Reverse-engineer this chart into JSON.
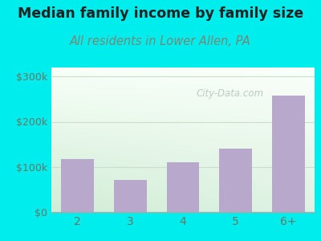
{
  "categories": [
    "2",
    "3",
    "4",
    "5",
    "6+"
  ],
  "values": [
    118000,
    72000,
    110000,
    140000,
    258000
  ],
  "bar_color": "#b8a8cc",
  "title": "Median family income by family size",
  "subtitle": "All residents in Lower Allen, PA",
  "title_fontsize": 12.5,
  "subtitle_fontsize": 10.5,
  "title_color": "#222222",
  "subtitle_color": "#778877",
  "outer_bg_color": "#00eded",
  "plot_bg_top_left": "#d8eedc",
  "plot_bg_top_right": "#f5faf5",
  "plot_bg_bottom": "#d0ecd6",
  "ylim": [
    0,
    320000
  ],
  "yticks": [
    0,
    100000,
    200000,
    300000
  ],
  "ytick_labels": [
    "$0",
    "$100k",
    "$200k",
    "$300k"
  ],
  "watermark": "City-Data.com",
  "watermark_color": "#aabbaa",
  "grid_color": "#ccddcc",
  "tick_color": "#667766",
  "xtick_fontsize": 10,
  "ytick_fontsize": 9
}
